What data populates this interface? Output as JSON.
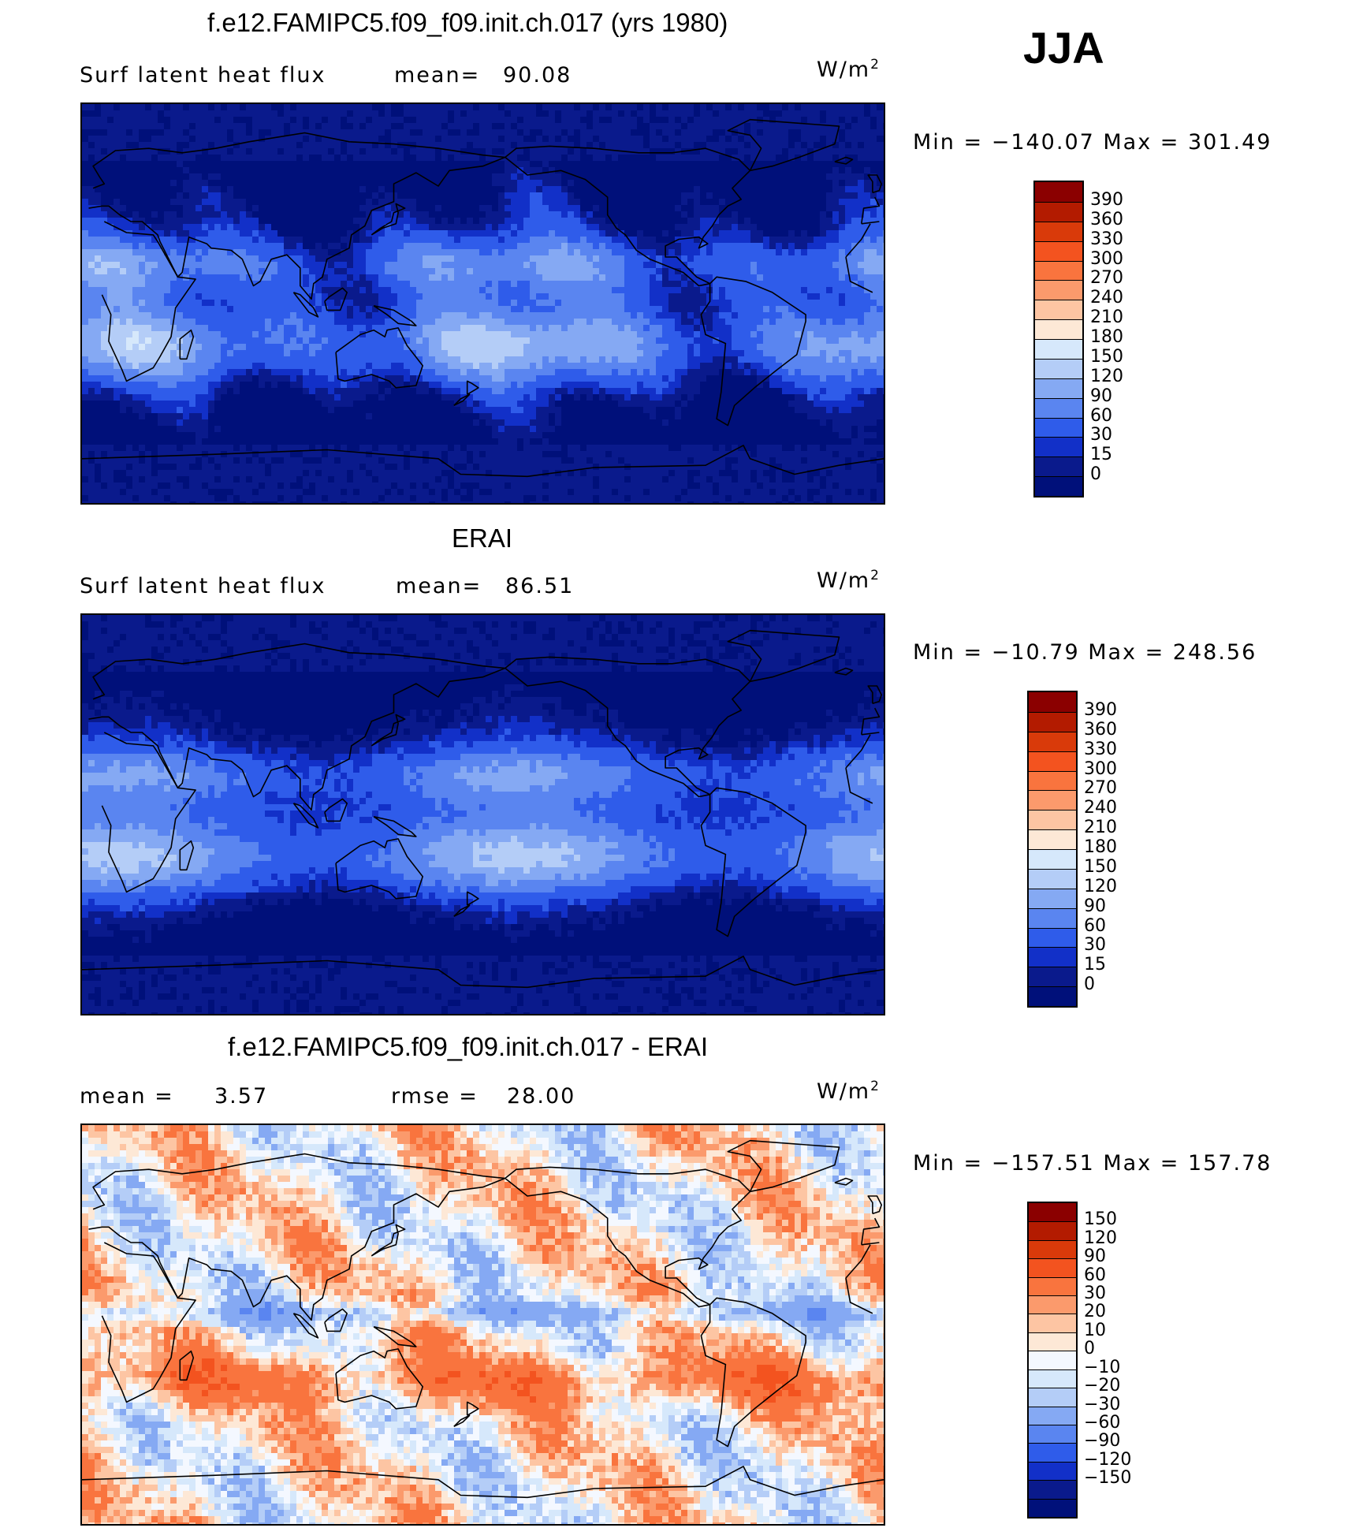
{
  "season": "JJA",
  "panels": [
    {
      "title": "f.e12.FAMIPC5.f09_f09.init.ch.017 (yrs 1980)",
      "left_text": "Surf latent heat flux",
      "stat1_label": "mean=",
      "stat1_value": "90.08",
      "units_main": "W/m",
      "units_sup": "2",
      "minmax_text": "Min = −140.07 Max = 301.49"
    },
    {
      "title": "ERAI",
      "left_text": "Surf latent heat flux",
      "stat1_label": "mean=",
      "stat1_value": "86.51",
      "units_main": "W/m",
      "units_sup": "2",
      "minmax_text": "Min = −10.79 Max = 248.56"
    },
    {
      "title": "f.e12.FAMIPC5.f09_f09.init.ch.017 - ERAI",
      "left_text": "mean =",
      "stat1_label": "",
      "stat1_value": "3.57",
      "stat2_label": "rmse =",
      "stat2_value": "28.00",
      "units_main": "W/m",
      "units_sup": "2",
      "minmax_text": "Min = −157.51 Max = 157.78"
    }
  ],
  "chart_data": [
    {
      "type": "heatmap",
      "title": "f.e12.FAMIPC5.f09_f09.init.ch.017 (yrs 1980)",
      "variable": "Surf latent heat flux",
      "units": "W/m2",
      "mean": 90.08,
      "min": -140.07,
      "max": 301.49,
      "colorbar_levels": [
        "390",
        "360",
        "330",
        "300",
        "270",
        "240",
        "210",
        "180",
        "150",
        "120",
        "90",
        "60",
        "30",
        "15",
        "0"
      ],
      "colorbar_colors": [
        "#8b0000",
        "#b31b00",
        "#d93a0a",
        "#f3531f",
        "#f9743e",
        "#fb9a6c",
        "#fdc5a3",
        "#fde8d6",
        "#d6e8fb",
        "#b4cdf7",
        "#85a9f3",
        "#5a85f0",
        "#2f5cea",
        "#1230c8",
        "#0a1a8c",
        "#00107a"
      ]
    },
    {
      "type": "heatmap",
      "title": "ERAI",
      "variable": "Surf latent heat flux",
      "units": "W/m2",
      "mean": 86.51,
      "min": -10.79,
      "max": 248.56,
      "colorbar_levels": [
        "390",
        "360",
        "330",
        "300",
        "270",
        "240",
        "210",
        "180",
        "150",
        "120",
        "90",
        "60",
        "30",
        "15",
        "0"
      ],
      "colorbar_colors": [
        "#8b0000",
        "#b31b00",
        "#d93a0a",
        "#f3531f",
        "#f9743e",
        "#fb9a6c",
        "#fdc5a3",
        "#fde8d6",
        "#d6e8fb",
        "#b4cdf7",
        "#85a9f3",
        "#5a85f0",
        "#2f5cea",
        "#1230c8",
        "#0a1a8c",
        "#00107a"
      ]
    },
    {
      "type": "heatmap",
      "title": "f.e12.FAMIPC5.f09_f09.init.ch.017 - ERAI",
      "units": "W/m2",
      "mean": 3.57,
      "rmse": 28.0,
      "min": -157.51,
      "max": 157.78,
      "colorbar_levels": [
        "150",
        "120",
        "90",
        "60",
        "30",
        "20",
        "10",
        "0",
        "−10",
        "−20",
        "−30",
        "−60",
        "−90",
        "−120",
        "−150"
      ],
      "colorbar_colors": [
        "#8b0000",
        "#b31b00",
        "#d93a0a",
        "#f3531f",
        "#f9743e",
        "#fb9a6c",
        "#fdc5a3",
        "#fde8d6",
        "#f4f8ff",
        "#d6e8fb",
        "#b4cdf7",
        "#85a9f3",
        "#5a85f0",
        "#2f5cea",
        "#1230c8",
        "#0a1a8c",
        "#00107a"
      ]
    }
  ]
}
